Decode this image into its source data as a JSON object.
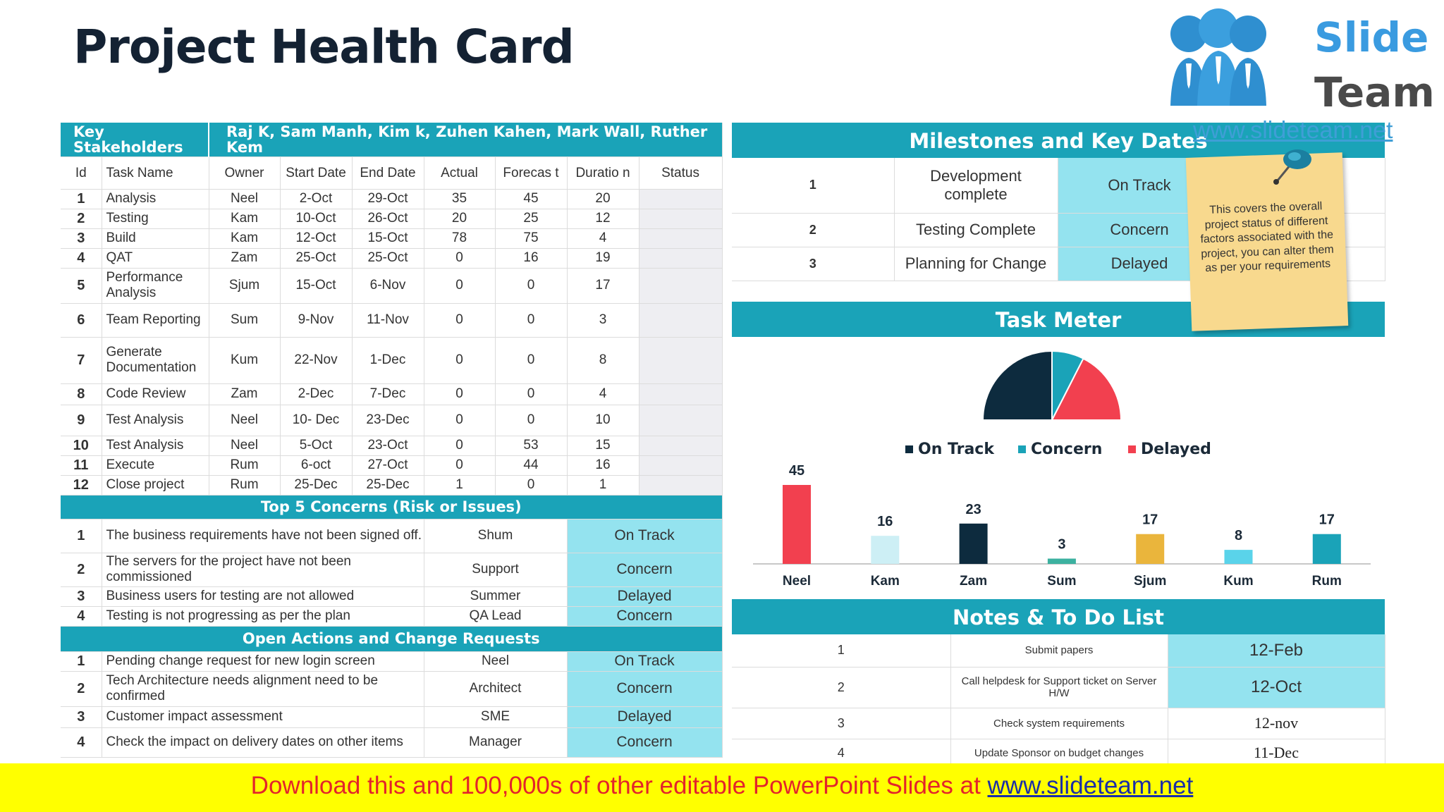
{
  "title": "Project Health Card",
  "logo": {
    "word1": "Slide",
    "word2": "Team",
    "url": "www.slideteam.net"
  },
  "stakeholders": {
    "label": "Key Stakeholders",
    "value": "Raj K, Sam Manh, Kim k, Zuhen Kahen, Mark Wall, Ruther Kem"
  },
  "tasks": {
    "headers": [
      "Id",
      "Task Name",
      "Owner",
      "Start Date",
      "End Date",
      "Actual",
      "Forecas t",
      "Duratio n",
      "Status"
    ],
    "rows": [
      {
        "id": "1",
        "name": "Analysis",
        "owner": "Neel",
        "start": "2-Oct",
        "end": "29-Oct",
        "actual": "35",
        "forecast": "45",
        "duration": "20"
      },
      {
        "id": "2",
        "name": "Testing",
        "owner": "Kam",
        "start": "10-Oct",
        "end": "26-Oct",
        "actual": "20",
        "forecast": "25",
        "duration": "12"
      },
      {
        "id": "3",
        "name": "Build",
        "owner": "Kam",
        "start": "12-Oct",
        "end": "15-Oct",
        "actual": "78",
        "forecast": "75",
        "duration": "4"
      },
      {
        "id": "4",
        "name": "QAT",
        "owner": "Zam",
        "start": "25-Oct",
        "end": "25-Oct",
        "actual": "0",
        "forecast": "16",
        "duration": "19"
      },
      {
        "id": "5",
        "name": "Performance Analysis",
        "owner": "Sjum",
        "start": "15-Oct",
        "end": "6-Nov",
        "actual": "0",
        "forecast": "0",
        "duration": "17"
      },
      {
        "id": "6",
        "name": "Team Reporting",
        "owner": "Sum",
        "start": "9-Nov",
        "end": "11-Nov",
        "actual": "0",
        "forecast": "0",
        "duration": "3"
      },
      {
        "id": "7",
        "name": "Generate Documentation",
        "owner": "Kum",
        "start": "22-Nov",
        "end": "1-Dec",
        "actual": "0",
        "forecast": "0",
        "duration": "8"
      },
      {
        "id": "8",
        "name": "Code Review",
        "owner": "Zam",
        "start": "2-Dec",
        "end": "7-Dec",
        "actual": "0",
        "forecast": "0",
        "duration": "4"
      },
      {
        "id": "9",
        "name": "Test Analysis",
        "owner": "Neel",
        "start": "10- Dec",
        "end": "23-Dec",
        "actual": "0",
        "forecast": "0",
        "duration": "10"
      },
      {
        "id": "10",
        "name": "Test Analysis",
        "owner": "Neel",
        "start": "5-Oct",
        "end": "23-Oct",
        "actual": "0",
        "forecast": "53",
        "duration": "15"
      },
      {
        "id": "11",
        "name": "Execute",
        "owner": "Rum",
        "start": "6-oct",
        "end": "27-Oct",
        "actual": "0",
        "forecast": "44",
        "duration": "16"
      },
      {
        "id": "12",
        "name": "Close project",
        "owner": "Rum",
        "start": "25-Dec",
        "end": "25-Dec",
        "actual": "1",
        "forecast": "0",
        "duration": "1"
      }
    ]
  },
  "concerns": {
    "title": "Top 5 Concerns (Risk or Issues)",
    "rows": [
      {
        "id": "1",
        "text": "The business requirements have not been signed off.",
        "owner": "Shum",
        "status": "On Track"
      },
      {
        "id": "2",
        "text": "The servers for the project have not been commissioned",
        "owner": "Support",
        "status": "Concern"
      },
      {
        "id": "3",
        "text": "Business users for testing are not allowed",
        "owner": "Summer",
        "status": "Delayed"
      },
      {
        "id": "4",
        "text": "Testing is not progressing as per the plan",
        "owner": "QA Lead",
        "status": "Concern"
      }
    ]
  },
  "actions": {
    "title": "Open Actions and Change Requests",
    "rows": [
      {
        "id": "1",
        "text": "Pending change request for new login screen",
        "owner": "Neel",
        "status": "On Track"
      },
      {
        "id": "2",
        "text": "Tech Architecture needs alignment need to be confirmed",
        "owner": "Architect",
        "status": "Concern"
      },
      {
        "id": "3",
        "text": "Customer impact assessment",
        "owner": "SME",
        "status": "Delayed"
      },
      {
        "id": "4",
        "text": "Check the impact on delivery dates on other items",
        "owner": "Manager",
        "status": "Concern"
      }
    ]
  },
  "milestones": {
    "title": "Milestones and Key Dates",
    "rows": [
      {
        "id": "1",
        "name": "Development complete",
        "status": "On Track"
      },
      {
        "id": "2",
        "name": "Testing Complete",
        "status": "Concern"
      },
      {
        "id": "3",
        "name": "Planning for Change",
        "status": "Delayed"
      }
    ]
  },
  "sticky_note": "This covers the overall project status of different factors associated with the project, you can alter them as per your requirements",
  "task_meter": {
    "title": "Task Meter"
  },
  "notes": {
    "title": "Notes & To Do List",
    "rows": [
      {
        "id": "1",
        "text": "Submit papers",
        "date": "12-Feb"
      },
      {
        "id": "2",
        "text": "Call helpdesk for Support ticket on Server H/W",
        "date": "12-Oct"
      },
      {
        "id": "3",
        "text": "Check system requirements",
        "date": "12-nov"
      },
      {
        "id": "4",
        "text": "Update Sponsor on budget changes",
        "date": "11-Dec"
      }
    ]
  },
  "footer": {
    "text": "Download this and 100,000s of other editable PowerPoint Slides at ",
    "link": "www.slideteam.net"
  },
  "colors": {
    "teal": "#1aa3b8",
    "light_teal": "#94e3ef",
    "navy": "#0d2b3e",
    "red": "#f2404f",
    "cyan": "#1aa3b8",
    "yellow": "#f8d98e"
  },
  "chart_data": [
    {
      "type": "pie",
      "categories": [
        "On Track",
        "Concern",
        "Delayed"
      ],
      "values": [
        50,
        15,
        35
      ],
      "legend": "bottom",
      "colors": [
        "#0d2b3e",
        "#1aa3b8",
        "#f2404f"
      ]
    },
    {
      "type": "bar",
      "categories": [
        "Neel",
        "Kam",
        "Zam",
        "Sum",
        "Sjum",
        "Kum",
        "Rum"
      ],
      "values": [
        45,
        16,
        23,
        3,
        17,
        8,
        17
      ],
      "colors": [
        "#f2404f",
        "#cdeff5",
        "#0d2b3e",
        "#3cb1a0",
        "#eab53c",
        "#5ad3ea",
        "#1aa3b8"
      ],
      "ylim": [
        0,
        50
      ]
    }
  ]
}
